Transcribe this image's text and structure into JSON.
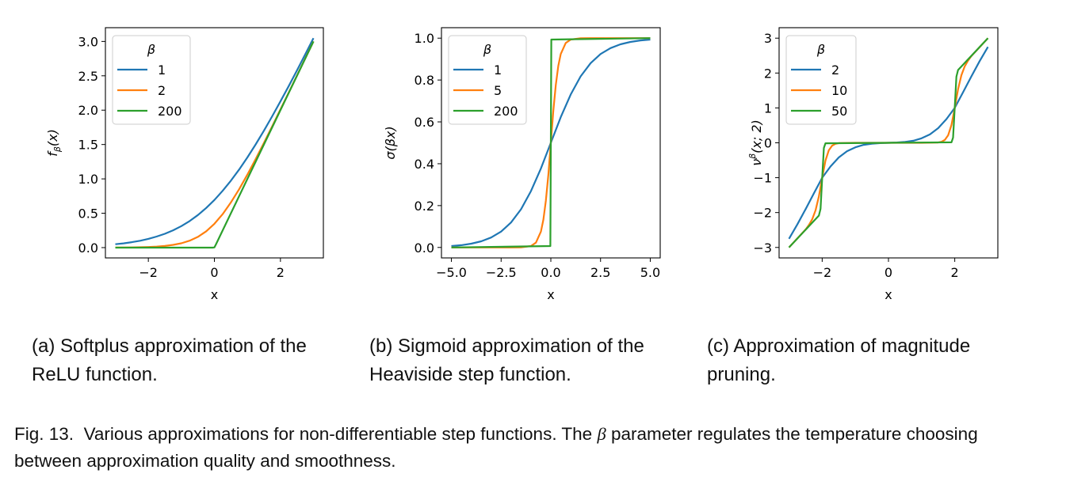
{
  "chart_data": [
    {
      "type": "line",
      "xlabel": "x",
      "ylabel": {
        "base": "f",
        "sub": "β",
        "sup": "",
        "rest": "(x)"
      },
      "xlim": [
        -3.3,
        3.3
      ],
      "ylim": [
        -0.15,
        3.2
      ],
      "xticks": [
        -2,
        0,
        2
      ],
      "xtick_labels": [
        "−2",
        "0",
        "2"
      ],
      "yticks": [
        0,
        0.5,
        1,
        1.5,
        2,
        2.5,
        3
      ],
      "ytick_labels": [
        "0.0",
        "0.5",
        "1.0",
        "1.5",
        "2.0",
        "2.5",
        "3.0"
      ],
      "grid": false,
      "legend": {
        "title": "β",
        "placement": "top-left"
      },
      "series": [
        {
          "name": "1",
          "color": "#1f77b4",
          "x": [
            -3,
            -2.75,
            -2.5,
            -2.25,
            -2,
            -1.75,
            -1.5,
            -1.25,
            -1,
            -0.75,
            -0.5,
            -0.25,
            0,
            0.25,
            0.5,
            0.75,
            1,
            1.25,
            1.5,
            1.75,
            2,
            2.25,
            2.5,
            2.75,
            3
          ],
          "y": [
            0.0486,
            0.0619,
            0.0789,
            0.1,
            0.1269,
            0.1606,
            0.2014,
            0.2519,
            0.3133,
            0.3869,
            0.4741,
            0.5759,
            0.6931,
            0.8259,
            0.9741,
            1.1369,
            1.3133,
            1.5019,
            1.7014,
            1.9106,
            2.1269,
            2.35,
            2.5789,
            2.8119,
            3.0486
          ]
        },
        {
          "name": "2",
          "color": "#ff7f0e",
          "x": [
            -3,
            -2.75,
            -2.5,
            -2.25,
            -2,
            -1.75,
            -1.5,
            -1.25,
            -1,
            -0.75,
            -0.5,
            -0.25,
            0,
            0.25,
            0.5,
            0.75,
            1,
            1.25,
            1.5,
            1.75,
            2,
            2.25,
            2.5,
            2.75,
            3
          ],
          "y": [
            0.0012,
            0.002,
            0.0034,
            0.0055,
            0.0091,
            0.0149,
            0.0243,
            0.0395,
            0.0635,
            0.1007,
            0.1566,
            0.237,
            0.3466,
            0.487,
            0.6566,
            0.8507,
            1.0635,
            1.2895,
            1.5243,
            1.7649,
            2.0091,
            2.2555,
            2.5034,
            2.752,
            3.0012
          ]
        },
        {
          "name": "200",
          "color": "#2ca02c",
          "x": [
            -3,
            -0.05,
            0,
            0.05,
            3
          ],
          "y": [
            0,
            0,
            0.0035,
            0.05,
            3
          ]
        }
      ]
    },
    {
      "type": "line",
      "xlabel": "x",
      "ylabel": {
        "base": "σ(βx)",
        "sub": "",
        "sup": "",
        "rest": ""
      },
      "xlim": [
        -5.5,
        5.5
      ],
      "ylim": [
        -0.05,
        1.05
      ],
      "xticks": [
        -5,
        -2.5,
        0,
        2.5,
        5
      ],
      "xtick_labels": [
        "−5.0",
        "−2.5",
        "0.0",
        "2.5",
        "5.0"
      ],
      "yticks": [
        0,
        0.2,
        0.4,
        0.6,
        0.8,
        1
      ],
      "ytick_labels": [
        "0.0",
        "0.2",
        "0.4",
        "0.6",
        "0.8",
        "1.0"
      ],
      "grid": false,
      "legend": {
        "title": "β",
        "placement": "top-left"
      },
      "series": [
        {
          "name": "1",
          "color": "#1f77b4",
          "x": [
            -5,
            -4.5,
            -4,
            -3.5,
            -3,
            -2.5,
            -2,
            -1.5,
            -1,
            -0.5,
            0,
            0.5,
            1,
            1.5,
            2,
            2.5,
            3,
            3.5,
            4,
            4.5,
            5
          ],
          "y": [
            0.0067,
            0.011,
            0.018,
            0.0293,
            0.0474,
            0.0759,
            0.1192,
            0.1824,
            0.2689,
            0.3775,
            0.5,
            0.6225,
            0.7311,
            0.8176,
            0.8808,
            0.9241,
            0.9526,
            0.9707,
            0.982,
            0.989,
            0.9933
          ]
        },
        {
          "name": "5",
          "color": "#ff7f0e",
          "x": [
            -5,
            -2,
            -1.5,
            -1,
            -0.75,
            -0.5,
            -0.375,
            -0.25,
            -0.125,
            0,
            0.125,
            0.25,
            0.375,
            0.5,
            0.75,
            1,
            1.5,
            2,
            5
          ],
          "y": [
            0,
            0,
            0.0006,
            0.0067,
            0.023,
            0.0759,
            0.1329,
            0.2227,
            0.3486,
            0.5,
            0.6514,
            0.7773,
            0.8671,
            0.9241,
            0.977,
            0.9933,
            0.9994,
            1,
            1
          ]
        },
        {
          "name": "200",
          "color": "#2ca02c",
          "x": [
            -5,
            -0.025,
            0,
            0.025,
            5
          ],
          "y": [
            0,
            0.0067,
            0.5,
            0.9933,
            1
          ]
        }
      ]
    },
    {
      "type": "line",
      "xlabel": "x",
      "ylabel": {
        "base": "ν",
        "sub": "",
        "sup": "β",
        "rest": "(x; 2)"
      },
      "xlim": [
        -3.3,
        3.3
      ],
      "ylim": [
        -3.3,
        3.3
      ],
      "xticks": [
        -2,
        0,
        2
      ],
      "xtick_labels": [
        "−2",
        "0",
        "2"
      ],
      "yticks": [
        -3,
        -2,
        -1,
        0,
        1,
        2,
        3
      ],
      "ytick_labels": [
        "−3",
        "−2",
        "−1",
        "0",
        "1",
        "2",
        "3"
      ],
      "grid": false,
      "legend": {
        "title": "β",
        "placement": "top-left"
      },
      "series": [
        {
          "name": "2",
          "color": "#1f77b4",
          "x": [
            -3,
            -2.75,
            -2.5,
            -2.25,
            -2,
            -1.75,
            -1.5,
            -1.25,
            -1,
            -0.75,
            -0.5,
            -0.25,
            0,
            0.25,
            0.5,
            0.75,
            1,
            1.25,
            1.5,
            1.75,
            2,
            2.25,
            2.5,
            2.75,
            3
          ],
          "y": [
            -2.75,
            -2.34,
            -1.9,
            -1.45,
            -1,
            -0.68,
            -0.42,
            -0.24,
            -0.13,
            -0.06,
            -0.025,
            -0.008,
            0,
            0.008,
            0.025,
            0.06,
            0.13,
            0.24,
            0.42,
            0.68,
            1,
            1.45,
            1.9,
            2.34,
            2.75
          ]
        },
        {
          "name": "10",
          "color": "#ff7f0e",
          "x": [
            -3,
            -2.5,
            -2.4,
            -2.3,
            -2.2,
            -2.1,
            -2,
            -1.9,
            -1.8,
            -1.7,
            -1.6,
            -1.5,
            -1,
            0,
            1,
            1.5,
            1.6,
            1.7,
            1.8,
            1.9,
            2,
            2.1,
            2.2,
            2.3,
            2.4,
            2.5,
            3
          ],
          "y": [
            -3,
            -2.4832,
            -2.3568,
            -2.191,
            -1.9378,
            -1.5353,
            -1,
            -0.5109,
            -0.2146,
            -0.0806,
            -0.0288,
            -0.0101,
            0,
            0,
            0,
            0.0101,
            0.0288,
            0.0806,
            0.2146,
            0.5109,
            1,
            1.5353,
            1.9378,
            2.191,
            2.3568,
            2.4832,
            3
          ]
        },
        {
          "name": "50",
          "color": "#2ca02c",
          "x": [
            -3,
            -2.1,
            -2.05,
            -2,
            -1.95,
            -1.9,
            0,
            1.9,
            1.95,
            2,
            2.05,
            2.1,
            3
          ],
          "y": [
            -3,
            -2.086,
            -1.894,
            -1,
            -0.148,
            -0.0128,
            0,
            0.0128,
            0.148,
            1,
            1.894,
            2.086,
            3
          ]
        }
      ]
    }
  ],
  "captions": {
    "a": "(a) Softplus approximation of the ReLU function.",
    "b": "(b) Sigmoid approximation of the Heaviside step function.",
    "c": "(c) Approximation of magnitude pruning.",
    "figure_label": "Fig. 13.",
    "figure_text_1": "Various approximations for non-differentiable step functions. The",
    "figure_symbol": "β",
    "figure_text_2": "parameter regulates the temperature choosing between approximation quality and smoothness."
  }
}
